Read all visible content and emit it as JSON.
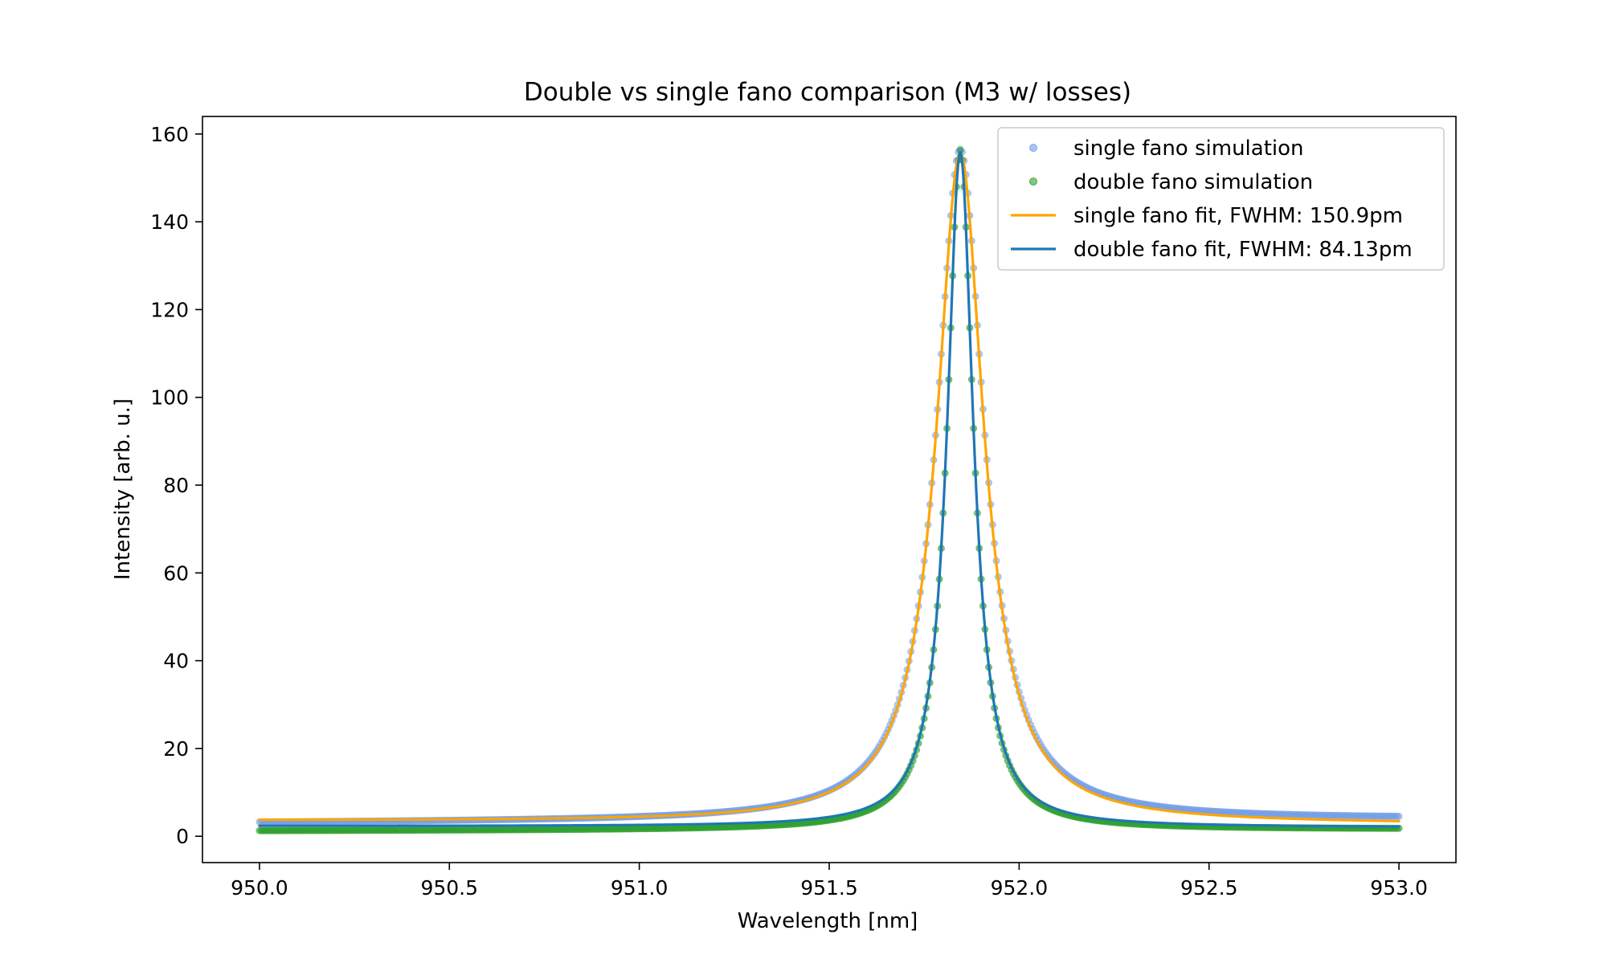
{
  "chart_data": {
    "type": "line",
    "title": "Double vs single fano comparison (M3 w/ losses)",
    "xlabel": "Wavelength [nm]",
    "ylabel": "Intensity [arb. u.]",
    "xlim": [
      949.85,
      953.15
    ],
    "ylim": [
      -6,
      164
    ],
    "grid": false,
    "legend_position": "upper right",
    "x_ticks": [
      950.0,
      950.5,
      951.0,
      951.5,
      952.0,
      952.5,
      953.0
    ],
    "x_tick_labels": [
      "950.0",
      "950.5",
      "951.0",
      "951.5",
      "952.0",
      "952.5",
      "953.0"
    ],
    "y_ticks": [
      0,
      20,
      40,
      60,
      80,
      100,
      120,
      140,
      160
    ],
    "y_tick_labels": [
      "0",
      "20",
      "40",
      "60",
      "80",
      "100",
      "120",
      "140",
      "160"
    ],
    "x_range": [
      950.0,
      953.0
    ],
    "peak_wavelength": 951.845,
    "series": [
      {
        "name": "single fano simulation",
        "kind": "scatter",
        "color": "#6f9be8",
        "x_range": [
          950.0,
          953.0
        ],
        "peak_x": 951.845,
        "peak_y": 156.0,
        "fwhm_nm": 0.1509,
        "baseline_left": 3.0,
        "baseline_right": 3.9
      },
      {
        "name": "double fano simulation",
        "kind": "scatter",
        "color": "#2ca02c",
        "x_range": [
          950.0,
          953.0
        ],
        "peak_x": 951.845,
        "peak_y": 156.0,
        "fwhm_nm": 0.08413,
        "baseline_left": 1.2,
        "baseline_right": 1.6
      },
      {
        "name": "single fano fit, FWHM: 150.9pm",
        "kind": "line",
        "color": "#ffa500",
        "x_range": [
          950.0,
          953.0
        ],
        "peak_x": 951.845,
        "peak_y": 156.0,
        "fwhm_nm": 0.1509,
        "baseline_left": 3.5,
        "baseline_right": 2.8
      },
      {
        "name": "double fano fit, FWHM: 84.13pm",
        "kind": "line",
        "color": "#1f77b4",
        "x_range": [
          950.0,
          953.0
        ],
        "peak_x": 951.845,
        "peak_y": 156.0,
        "fwhm_nm": 0.08413,
        "baseline_left": 2.3,
        "baseline_right": 2.0
      }
    ]
  }
}
